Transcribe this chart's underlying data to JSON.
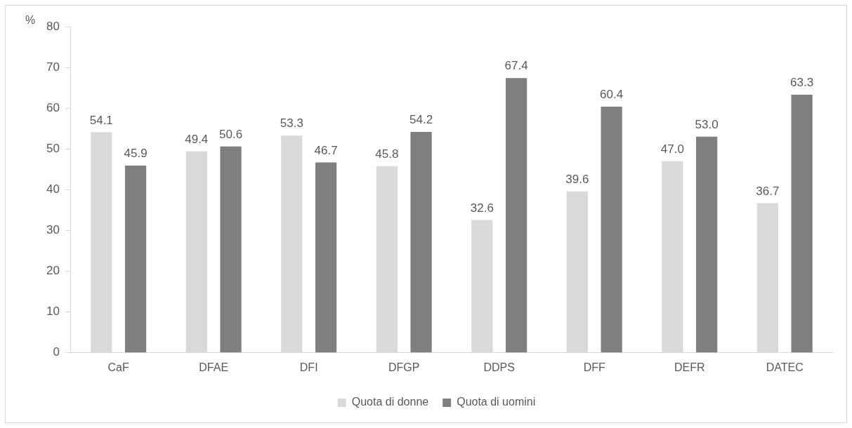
{
  "chart_data": {
    "type": "bar",
    "ylabel": "%",
    "categories": [
      "CaF",
      "DFAE",
      "DFI",
      "DFGP",
      "DDPS",
      "DFF",
      "DEFR",
      "DATEC"
    ],
    "series": [
      {
        "name": "Quota di donne",
        "color": "#d9d9d9",
        "values": [
          54.1,
          49.4,
          53.3,
          45.8,
          32.6,
          39.6,
          47.0,
          36.7
        ],
        "value_labels": [
          "54.1",
          "49.4",
          "53.3",
          "45.8",
          "32.6",
          "39.6",
          "47.0",
          "36.7"
        ]
      },
      {
        "name": "Quota di uomini",
        "color": "#7f7f7f",
        "values": [
          45.9,
          50.6,
          46.7,
          54.2,
          67.4,
          60.4,
          53.0,
          63.3
        ],
        "value_labels": [
          "45.9",
          "50.6",
          "46.7",
          "54.2",
          "67.4",
          "60.4",
          "53.0",
          "63.3"
        ]
      }
    ],
    "ylim": [
      0,
      80
    ],
    "yticks": [
      0,
      10,
      20,
      30,
      40,
      50,
      60,
      70,
      80
    ],
    "grid": false,
    "legend": "bottom"
  }
}
